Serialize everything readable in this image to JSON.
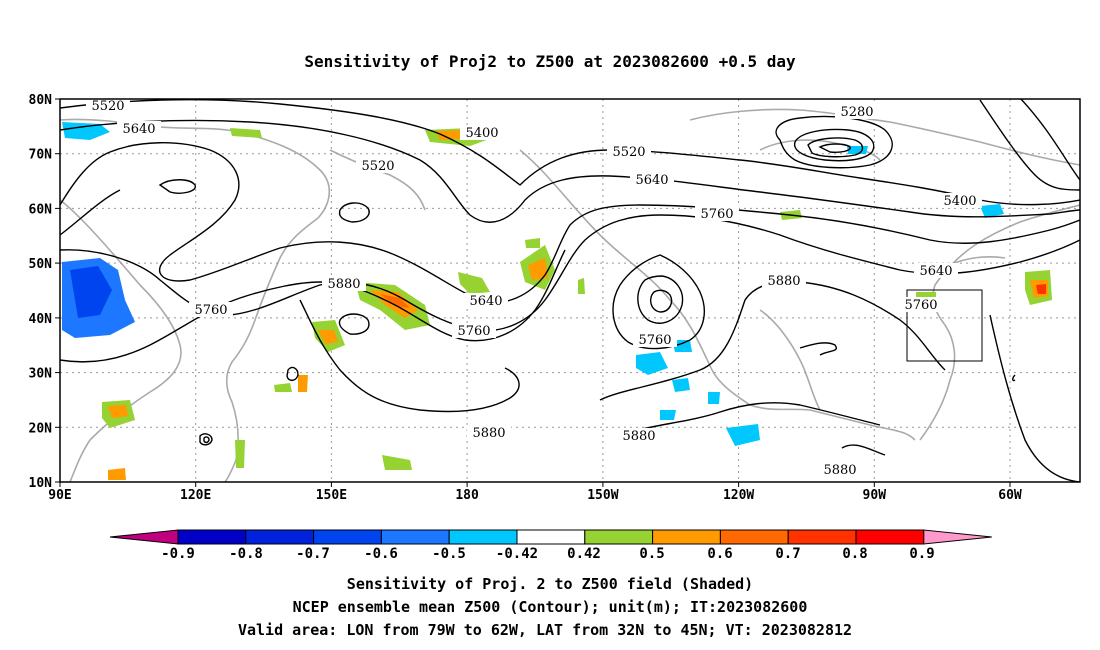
{
  "title": "Sensitivity of Proj2 to Z500 at 2023082600 +0.5 day",
  "map": {
    "lon_ticks": [
      "90E",
      "120E",
      "150E",
      "180",
      "150W",
      "120W",
      "90W",
      "60W"
    ],
    "lat_ticks": [
      "80N",
      "70N",
      "60N",
      "50N",
      "40N",
      "30N",
      "20N",
      "10N"
    ],
    "contour_labels": [
      "5520",
      "5640",
      "5400",
      "5520",
      "5280",
      "5520",
      "5640",
      "5760",
      "5400",
      "5640",
      "5760",
      "5880",
      "5640",
      "5760",
      "5880",
      "5760",
      "5760",
      "5880",
      "5880",
      "5880"
    ],
    "valid_area": {
      "lon_min_deg_w": 79,
      "lon_max_deg_w": 62,
      "lat_min_deg_n": 32,
      "lat_max_deg_n": 45
    }
  },
  "colorbar": {
    "labels": [
      "-0.9",
      "-0.8",
      "-0.7",
      "-0.6",
      "-0.5",
      "-0.42",
      "0.42",
      "0.5",
      "0.6",
      "0.7",
      "0.8",
      "0.9"
    ],
    "colors": [
      "#c0007f",
      "#0000c8",
      "#0022dd",
      "#0044f0",
      "#1e78ff",
      "#00c8ff",
      "#ffffff",
      "#96d232",
      "#ff9a00",
      "#ff6a00",
      "#ff3200",
      "#ff0000",
      "#ff99cc"
    ]
  },
  "captions": [
    "Sensitivity of Proj. 2 to Z500 field (Shaded)",
    "NCEP ensemble mean Z500 (Contour); unit(m); IT:2023082600",
    "Valid area: LON from 79W to 62W, LAT from 32N to 45N; VT: 2023082812"
  ]
}
